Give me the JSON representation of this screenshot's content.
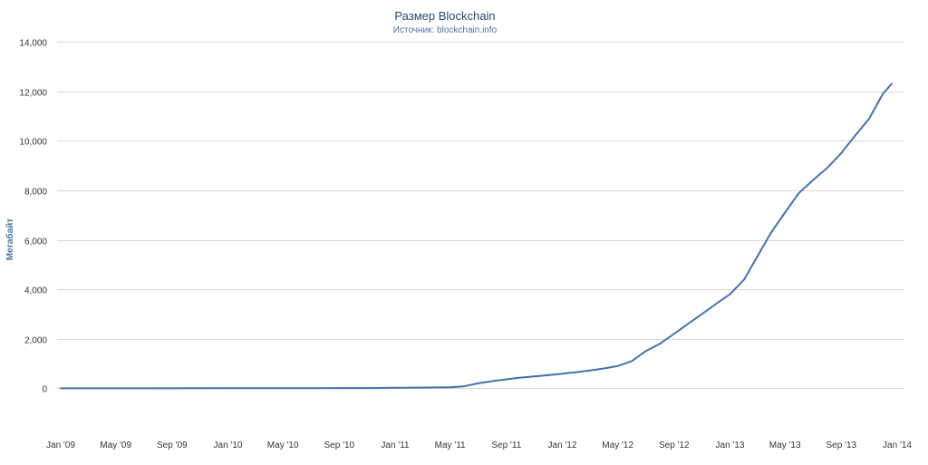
{
  "chart_data": {
    "type": "line",
    "title": "Размер Blockchain",
    "subtitle": "Источник: blockchain.info",
    "ylabel": "Мегабайт",
    "xlabel": "",
    "ylim": [
      -2000,
      14000
    ],
    "yticks": [
      0,
      2000,
      4000,
      6000,
      8000,
      10000,
      12000,
      14000
    ],
    "ytick_labels": [
      "0",
      "2,000",
      "4,000",
      "6,000",
      "8,000",
      "10,000",
      "12,000",
      "14,000"
    ],
    "xlim": [
      "2009-01-01",
      "2014-01-01"
    ],
    "xticks": [
      "2009-01-01",
      "2009-05-01",
      "2009-09-01",
      "2010-01-01",
      "2010-05-01",
      "2010-09-01",
      "2011-01-01",
      "2011-05-01",
      "2011-09-01",
      "2012-01-01",
      "2012-05-01",
      "2012-09-01",
      "2013-01-01",
      "2013-05-01",
      "2013-09-01",
      "2014-01-01"
    ],
    "xtick_labels": [
      "Jan '09",
      "May '09",
      "Sep '09",
      "Jan '10",
      "May '10",
      "Sep '10",
      "Jan '11",
      "May '11",
      "Sep '11",
      "Jan '12",
      "May '12",
      "Sep '12",
      "Jan '13",
      "May '13",
      "Sep '13",
      "Jan '14"
    ],
    "grid": true,
    "legend": "none",
    "colors": {
      "line": "#4572a7",
      "grid": "#d8d8d8",
      "axis_text": "#333333",
      "ylabel": "#4d759e",
      "title": "#274b6d",
      "subtitle": "#4d759e"
    },
    "series": [
      {
        "x": [
          "2009-01-01",
          "2009-07-01",
          "2010-01-01",
          "2010-07-01",
          "2010-11-15",
          "2011-01-01",
          "2011-03-01",
          "2011-05-01",
          "2011-06-01",
          "2011-07-01",
          "2011-08-01",
          "2011-09-01",
          "2011-10-01",
          "2011-11-01",
          "2011-12-01",
          "2012-01-01",
          "2012-02-01",
          "2012-03-01",
          "2012-04-01",
          "2012-05-01",
          "2012-06-01",
          "2012-07-01",
          "2012-08-01",
          "2012-09-01",
          "2012-10-01",
          "2012-11-01",
          "2012-12-01",
          "2013-01-01",
          "2013-02-01",
          "2013-03-01",
          "2013-04-01",
          "2013-05-01",
          "2013-06-01",
          "2013-07-01",
          "2013-08-01",
          "2013-09-01",
          "2013-10-01",
          "2013-11-01",
          "2013-12-01",
          "2013-12-20"
        ],
        "values": [
          0,
          0,
          2,
          5,
          10,
          20,
          30,
          40,
          80,
          200,
          290,
          360,
          430,
          480,
          530,
          590,
          650,
          720,
          800,
          900,
          1100,
          1500,
          1800,
          2200,
          2600,
          3000,
          3400,
          3800,
          4400,
          5300,
          6300,
          7100,
          7900,
          8400,
          8900,
          9500,
          10200,
          10900,
          11900,
          12300
        ]
      }
    ]
  }
}
